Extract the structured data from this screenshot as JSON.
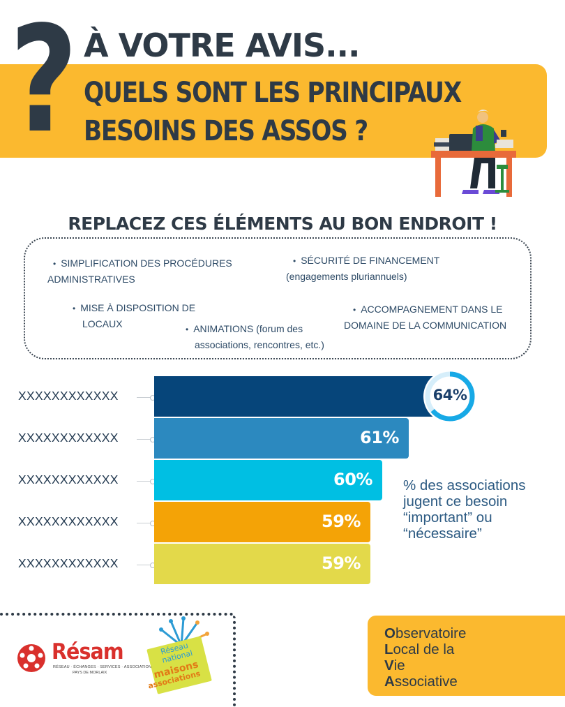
{
  "header": {
    "question_mark": "?",
    "title_line1": "À VOTRE AVIS...",
    "title_line2": "QUELS SONT LES PRINCIPAUX",
    "title_line3": "BESOINS DES ASSOS ?"
  },
  "instruction": "REPLACEZ CES ÉLÉMENTS AU BON ENDROIT !",
  "items": [
    {
      "line1": "SIMPLIFICATION DES PROCÉDURES",
      "line2": "ADMINISTRATIVES"
    },
    {
      "line1": "SÉCURITÉ DE FINANCEMENT",
      "line2": "(engagements pluriannuels)"
    },
    {
      "line1": "MISE À DISPOSITION DE",
      "line2": "LOCAUX"
    },
    {
      "line1": "ACCOMPAGNEMENT DANS LE",
      "line2": "DOMAINE DE LA COMMUNICATION"
    },
    {
      "line1": "ANIMATIONS (forum des",
      "line2": "associations, rencontres, etc.)"
    }
  ],
  "chart_data": {
    "type": "bar",
    "orientation": "horizontal",
    "categories": [
      "XXXXXXXXXXXX",
      "XXXXXXXXXXXX",
      "XXXXXXXXXXXX",
      "XXXXXXXXXXXX",
      "XXXXXXXXXXXX"
    ],
    "values": [
      64,
      61,
      60,
      59,
      59
    ],
    "value_labels": [
      "64%",
      "61%",
      "60%",
      "59%",
      "59%"
    ],
    "colors": [
      "#06457a",
      "#2c89bf",
      "#00bfe3",
      "#f4a306",
      "#e3d94a"
    ],
    "xlim": [
      0,
      100
    ],
    "annotation": "% des associations jugent ce besoin “important” ou “nécessaire”",
    "highlight_ring_color": "#17a9e6"
  },
  "note_lines": [
    "% des associations",
    "jugent ce besoin",
    "“important” ou",
    "“nécessaire”"
  ],
  "footer": {
    "resam": {
      "name": "Résam",
      "tagline": "RÉSEAU · ÉCHANGES · SERVICES · ASSOCIATIONS",
      "tagline2": "PAYS DE MORLAIX"
    },
    "reseau": {
      "line1": "Réseau",
      "line2": "national",
      "line3": "maisons",
      "line4": "associations"
    },
    "olva": [
      {
        "initial": "O",
        "rest": "bservatoire"
      },
      {
        "initial": "L",
        "rest": "ocal de la"
      },
      {
        "initial": "V",
        "rest": "ie"
      },
      {
        "initial": "A",
        "rest": "ssociative"
      }
    ]
  }
}
